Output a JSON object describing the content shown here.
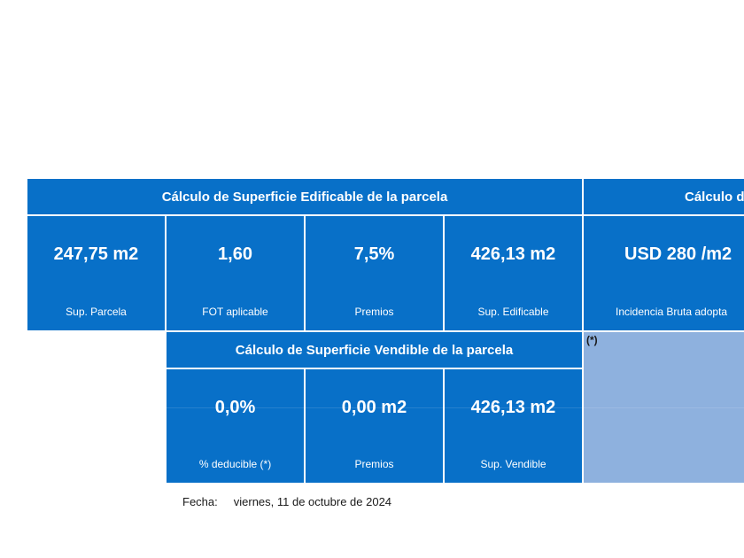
{
  "section_edificable": {
    "title": "Cálculo de Superficie Edificable de la parcela",
    "cells": [
      {
        "value": "247,75 m2",
        "label": "Sup. Parcela"
      },
      {
        "value": "1,60",
        "label": "FOT aplicable"
      },
      {
        "value": "7,5%",
        "label": "Premios"
      },
      {
        "value": "426,13 m2",
        "label": "Sup. Edificable"
      }
    ]
  },
  "section_right": {
    "title": "Cálculo d",
    "value": "USD  280 /m2",
    "label": "Incidencia Bruta adopta"
  },
  "section_vendible": {
    "title": "Cálculo de Superficie Vendible de la parcela",
    "cells": [
      {
        "value": "0,0%",
        "label": "% deducible (*)"
      },
      {
        "value": "0,00 m2",
        "label": "Premios"
      },
      {
        "value": "426,13 m2",
        "label": "Sup. Vendible"
      }
    ]
  },
  "note_marker": "(*)",
  "fecha": {
    "label": "Fecha:",
    "value": "viernes, 11 de octubre de 2024"
  },
  "colors": {
    "primary_blue": "#0870c8",
    "light_blue": "#8eb1de"
  }
}
